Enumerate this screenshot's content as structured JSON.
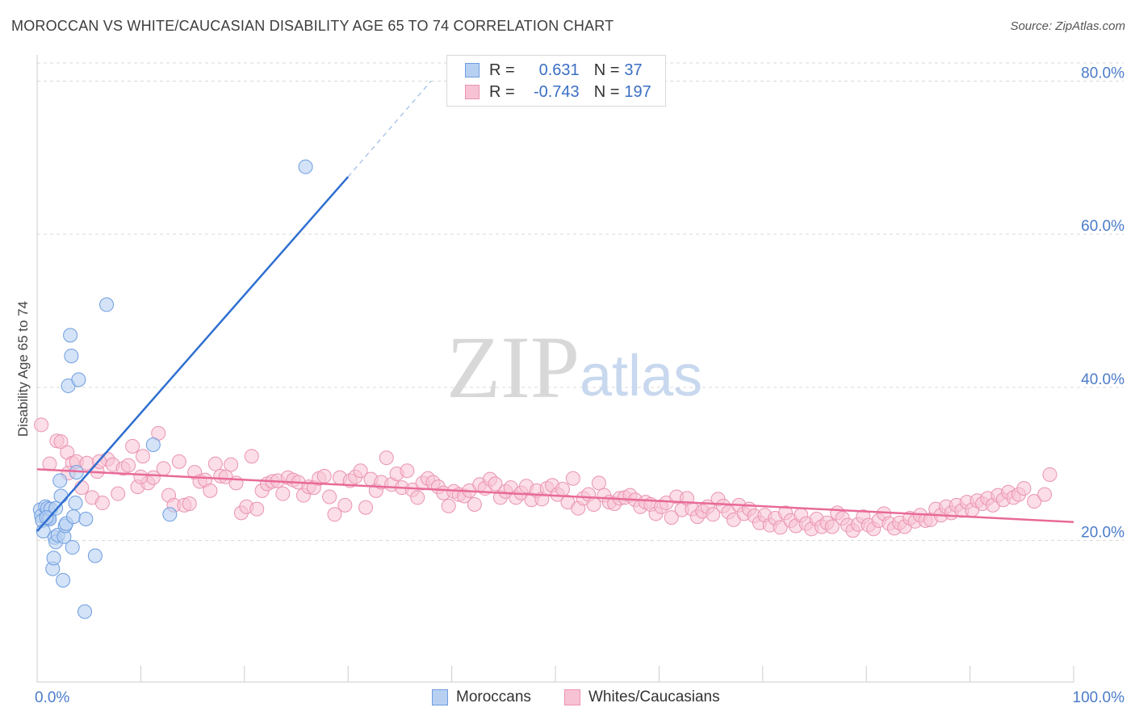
{
  "title": "MOROCCAN VS WHITE/CAUCASIAN DISABILITY AGE 65 TO 74 CORRELATION CHART",
  "source": "Source: ZipAtlas.com",
  "watermark": {
    "zip": "ZIP",
    "atlas": "atlas"
  },
  "colors": {
    "blue_fill": "#b7d0f2",
    "blue_stroke": "#6d9de0",
    "blue_line": "#2f6fd0",
    "pink_fill": "#f7c3d4",
    "pink_stroke": "#ea93b1",
    "pink_line": "#e86a98",
    "tick_text": "#4a7cc9",
    "grid": "#d9d9d9"
  },
  "legend": {
    "rows": [
      {
        "r_label": "R =",
        "r_value": "0.631",
        "n_label": "N =",
        "n_value": "37"
      },
      {
        "r_label": "R =",
        "r_value": "-0.743",
        "n_label": "N =",
        "n_value": "197"
      }
    ]
  },
  "bottom_legend": {
    "moroccans": "Moroccans",
    "whites": "Whites/Caucasians"
  },
  "chart_data": {
    "type": "scatter",
    "title": "MOROCCAN VS WHITE/CAUCASIAN DISABILITY AGE 65 TO 74 CORRELATION CHART",
    "xlabel": "",
    "ylabel": "Disability Age 65 to 74",
    "xlim": [
      0,
      100
    ],
    "ylim": [
      1.5,
      83
    ],
    "x_tick_labels": [
      "0.0%",
      "100.0%"
    ],
    "y_ticks": [
      20,
      40,
      60,
      80
    ],
    "y_tick_labels": [
      "20.0%",
      "40.0%",
      "60.0%",
      "80.0%"
    ],
    "grid": true,
    "series": [
      {
        "name": "Moroccans",
        "r": 0.631,
        "n": 37,
        "trend": {
          "x0": 0.0,
          "y0": 21.2,
          "x1": 30.0,
          "y1": 67.5,
          "dash_x1": 38.0,
          "dash_y1": 80.0
        },
        "points": [
          [
            0.3,
            24.0
          ],
          [
            0.4,
            23.2
          ],
          [
            0.5,
            22.6
          ],
          [
            0.6,
            21.2
          ],
          [
            0.8,
            24.4
          ],
          [
            1.0,
            24.2
          ],
          [
            1.1,
            22.9
          ],
          [
            1.2,
            22.8
          ],
          [
            1.3,
            24.1
          ],
          [
            1.5,
            16.3
          ],
          [
            1.6,
            17.7
          ],
          [
            1.7,
            20.4
          ],
          [
            1.8,
            24.2
          ],
          [
            1.8,
            19.8
          ],
          [
            2.0,
            20.7
          ],
          [
            2.2,
            27.8
          ],
          [
            2.3,
            25.8
          ],
          [
            2.5,
            14.8
          ],
          [
            2.6,
            20.5
          ],
          [
            2.7,
            21.9
          ],
          [
            2.8,
            22.2
          ],
          [
            3.0,
            40.2
          ],
          [
            3.2,
            46.8
          ],
          [
            3.3,
            44.1
          ],
          [
            3.4,
            19.1
          ],
          [
            3.5,
            23.1
          ],
          [
            3.7,
            24.9
          ],
          [
            3.8,
            28.9
          ],
          [
            4.0,
            41.0
          ],
          [
            4.6,
            10.7
          ],
          [
            4.7,
            22.8
          ],
          [
            5.6,
            18.0
          ],
          [
            6.7,
            50.8
          ],
          [
            11.2,
            32.5
          ],
          [
            12.8,
            23.4
          ],
          [
            25.9,
            68.8
          ],
          [
            0.9,
            23.0
          ]
        ]
      },
      {
        "name": "Whites/Caucasians",
        "r": -0.743,
        "n": 197,
        "trend": {
          "x0": 0.0,
          "y0": 29.3,
          "x1": 100.0,
          "y1": 22.4
        },
        "points": [
          [
            0.4,
            35.1
          ],
          [
            1.9,
            33.0
          ],
          [
            2.3,
            32.9
          ],
          [
            2.9,
            31.5
          ],
          [
            3.4,
            30.1
          ],
          [
            3.8,
            30.3
          ],
          [
            4.3,
            26.9
          ],
          [
            4.8,
            30.1
          ],
          [
            5.3,
            25.6
          ],
          [
            5.8,
            29.0
          ],
          [
            6.3,
            24.9
          ],
          [
            6.8,
            30.6
          ],
          [
            7.3,
            29.9
          ],
          [
            7.8,
            26.1
          ],
          [
            8.3,
            29.4
          ],
          [
            8.8,
            29.8
          ],
          [
            9.2,
            32.3
          ],
          [
            9.7,
            27.0
          ],
          [
            10.2,
            31.0
          ],
          [
            10.7,
            27.5
          ],
          [
            11.2,
            28.2
          ],
          [
            11.7,
            34.0
          ],
          [
            12.2,
            29.4
          ],
          [
            12.7,
            25.9
          ],
          [
            13.2,
            24.6
          ],
          [
            13.7,
            30.3
          ],
          [
            14.2,
            24.6
          ],
          [
            14.7,
            24.8
          ],
          [
            15.2,
            28.9
          ],
          [
            15.7,
            27.7
          ],
          [
            16.2,
            27.9
          ],
          [
            16.7,
            26.5
          ],
          [
            17.2,
            30.0
          ],
          [
            17.7,
            28.4
          ],
          [
            18.2,
            28.3
          ],
          [
            18.7,
            29.9
          ],
          [
            19.2,
            27.5
          ],
          [
            19.7,
            23.6
          ],
          [
            20.2,
            24.4
          ],
          [
            20.7,
            31.0
          ],
          [
            21.2,
            24.1
          ],
          [
            21.7,
            26.5
          ],
          [
            22.2,
            27.4
          ],
          [
            22.7,
            27.7
          ],
          [
            23.2,
            27.8
          ],
          [
            23.7,
            26.1
          ],
          [
            24.2,
            28.2
          ],
          [
            24.7,
            27.9
          ],
          [
            25.2,
            27.6
          ],
          [
            25.7,
            25.9
          ],
          [
            26.2,
            27.0
          ],
          [
            26.7,
            26.9
          ],
          [
            27.2,
            28.1
          ],
          [
            27.7,
            28.4
          ],
          [
            28.2,
            25.7
          ],
          [
            28.7,
            23.4
          ],
          [
            29.2,
            28.2
          ],
          [
            29.7,
            24.6
          ],
          [
            30.2,
            27.8
          ],
          [
            30.7,
            28.3
          ],
          [
            31.2,
            29.1
          ],
          [
            31.7,
            24.3
          ],
          [
            32.2,
            28.0
          ],
          [
            32.7,
            26.5
          ],
          [
            33.2,
            27.6
          ],
          [
            33.7,
            30.8
          ],
          [
            34.2,
            27.3
          ],
          [
            34.7,
            28.7
          ],
          [
            35.2,
            26.9
          ],
          [
            35.7,
            29.1
          ],
          [
            36.2,
            26.6
          ],
          [
            36.7,
            25.6
          ],
          [
            37.2,
            27.5
          ],
          [
            37.7,
            28.1
          ],
          [
            38.2,
            27.6
          ],
          [
            38.7,
            27.0
          ],
          [
            39.2,
            26.2
          ],
          [
            39.7,
            24.5
          ],
          [
            40.2,
            26.4
          ],
          [
            40.7,
            26.0
          ],
          [
            41.2,
            25.8
          ],
          [
            41.7,
            26.5
          ],
          [
            42.2,
            24.7
          ],
          [
            42.7,
            27.3
          ],
          [
            43.2,
            26.8
          ],
          [
            43.7,
            28.0
          ],
          [
            44.2,
            27.4
          ],
          [
            44.7,
            25.6
          ],
          [
            45.2,
            26.4
          ],
          [
            45.7,
            26.9
          ],
          [
            46.2,
            25.6
          ],
          [
            46.7,
            26.2
          ],
          [
            47.2,
            27.1
          ],
          [
            47.7,
            25.3
          ],
          [
            48.2,
            26.5
          ],
          [
            48.7,
            25.4
          ],
          [
            49.2,
            26.8
          ],
          [
            49.7,
            27.2
          ],
          [
            50.2,
            26.0
          ],
          [
            50.7,
            26.7
          ],
          [
            51.2,
            25.0
          ],
          [
            51.7,
            28.1
          ],
          [
            52.2,
            24.2
          ],
          [
            52.7,
            25.5
          ],
          [
            53.2,
            26.0
          ],
          [
            53.7,
            24.7
          ],
          [
            54.2,
            27.5
          ],
          [
            54.7,
            25.9
          ],
          [
            55.2,
            25.0
          ],
          [
            55.7,
            24.8
          ],
          [
            56.2,
            25.5
          ],
          [
            56.7,
            25.6
          ],
          [
            57.2,
            25.9
          ],
          [
            57.7,
            25.3
          ],
          [
            58.2,
            24.4
          ],
          [
            58.7,
            25.0
          ],
          [
            59.2,
            24.7
          ],
          [
            59.7,
            23.5
          ],
          [
            60.2,
            24.4
          ],
          [
            60.7,
            24.9
          ],
          [
            61.2,
            23.0
          ],
          [
            61.7,
            25.7
          ],
          [
            62.2,
            24.0
          ],
          [
            62.7,
            25.5
          ],
          [
            63.2,
            24.1
          ],
          [
            63.7,
            23.1
          ],
          [
            64.2,
            23.8
          ],
          [
            64.7,
            24.4
          ],
          [
            65.2,
            23.4
          ],
          [
            65.7,
            25.4
          ],
          [
            66.2,
            24.5
          ],
          [
            66.7,
            23.7
          ],
          [
            67.2,
            22.7
          ],
          [
            67.7,
            24.6
          ],
          [
            68.2,
            23.5
          ],
          [
            68.7,
            24.1
          ],
          [
            69.2,
            23.2
          ],
          [
            69.7,
            22.3
          ],
          [
            70.2,
            23.3
          ],
          [
            70.7,
            22.0
          ],
          [
            71.2,
            22.9
          ],
          [
            71.7,
            21.7
          ],
          [
            72.2,
            23.6
          ],
          [
            72.7,
            22.6
          ],
          [
            73.2,
            21.9
          ],
          [
            73.7,
            23.3
          ],
          [
            74.2,
            22.2
          ],
          [
            74.7,
            21.5
          ],
          [
            75.2,
            22.8
          ],
          [
            75.7,
            21.8
          ],
          [
            76.2,
            22.3
          ],
          [
            76.7,
            21.8
          ],
          [
            77.2,
            23.6
          ],
          [
            77.7,
            22.9
          ],
          [
            78.2,
            22.0
          ],
          [
            78.7,
            21.3
          ],
          [
            79.2,
            22.1
          ],
          [
            79.7,
            23.1
          ],
          [
            80.2,
            22.0
          ],
          [
            80.7,
            21.5
          ],
          [
            81.2,
            22.6
          ],
          [
            81.7,
            23.5
          ],
          [
            82.2,
            22.2
          ],
          [
            82.7,
            21.6
          ],
          [
            83.2,
            22.3
          ],
          [
            83.7,
            21.8
          ],
          [
            84.2,
            22.9
          ],
          [
            84.7,
            22.5
          ],
          [
            85.2,
            23.3
          ],
          [
            85.7,
            22.6
          ],
          [
            86.2,
            22.7
          ],
          [
            86.7,
            24.1
          ],
          [
            87.2,
            23.3
          ],
          [
            87.7,
            24.4
          ],
          [
            88.2,
            23.6
          ],
          [
            88.7,
            24.6
          ],
          [
            89.2,
            23.9
          ],
          [
            89.7,
            25.0
          ],
          [
            90.2,
            24.0
          ],
          [
            90.7,
            25.2
          ],
          [
            91.2,
            24.8
          ],
          [
            91.7,
            25.5
          ],
          [
            92.2,
            24.6
          ],
          [
            92.7,
            25.9
          ],
          [
            93.2,
            25.3
          ],
          [
            93.7,
            26.3
          ],
          [
            94.2,
            25.6
          ],
          [
            94.7,
            26.0
          ],
          [
            95.2,
            26.8
          ],
          [
            96.2,
            25.1
          ],
          [
            97.2,
            26.0
          ],
          [
            97.7,
            28.6
          ],
          [
            1.2,
            30.0
          ],
          [
            3.0,
            28.8
          ],
          [
            6.0,
            30.3
          ],
          [
            10.0,
            28.3
          ]
        ]
      }
    ]
  }
}
